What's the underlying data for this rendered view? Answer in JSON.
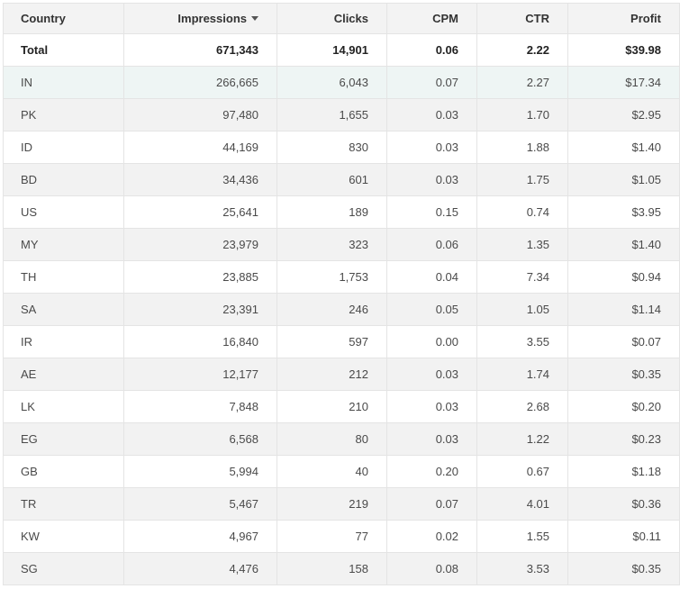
{
  "table": {
    "columns": [
      {
        "key": "country",
        "label": "Country"
      },
      {
        "key": "impressions",
        "label": "Impressions"
      },
      {
        "key": "clicks",
        "label": "Clicks"
      },
      {
        "key": "cpm",
        "label": "CPM"
      },
      {
        "key": "ctr",
        "label": "CTR"
      },
      {
        "key": "profit",
        "label": "Profit"
      }
    ],
    "sorted_by": "impressions",
    "sort_direction": "descending",
    "total": {
      "country": "Total",
      "impressions": "671,343",
      "clicks": "14,901",
      "cpm": "0.06",
      "ctr": "2.22",
      "profit": "$39.98"
    },
    "rows": [
      {
        "country": "IN",
        "impressions": "266,665",
        "clicks": "6,043",
        "cpm": "0.07",
        "ctr": "2.27",
        "profit": "$17.34"
      },
      {
        "country": "PK",
        "impressions": "97,480",
        "clicks": "1,655",
        "cpm": "0.03",
        "ctr": "1.70",
        "profit": "$2.95"
      },
      {
        "country": "ID",
        "impressions": "44,169",
        "clicks": "830",
        "cpm": "0.03",
        "ctr": "1.88",
        "profit": "$1.40"
      },
      {
        "country": "BD",
        "impressions": "34,436",
        "clicks": "601",
        "cpm": "0.03",
        "ctr": "1.75",
        "profit": "$1.05"
      },
      {
        "country": "US",
        "impressions": "25,641",
        "clicks": "189",
        "cpm": "0.15",
        "ctr": "0.74",
        "profit": "$3.95"
      },
      {
        "country": "MY",
        "impressions": "23,979",
        "clicks": "323",
        "cpm": "0.06",
        "ctr": "1.35",
        "profit": "$1.40"
      },
      {
        "country": "TH",
        "impressions": "23,885",
        "clicks": "1,753",
        "cpm": "0.04",
        "ctr": "7.34",
        "profit": "$0.94"
      },
      {
        "country": "SA",
        "impressions": "23,391",
        "clicks": "246",
        "cpm": "0.05",
        "ctr": "1.05",
        "profit": "$1.14"
      },
      {
        "country": "IR",
        "impressions": "16,840",
        "clicks": "597",
        "cpm": "0.00",
        "ctr": "3.55",
        "profit": "$0.07"
      },
      {
        "country": "AE",
        "impressions": "12,177",
        "clicks": "212",
        "cpm": "0.03",
        "ctr": "1.74",
        "profit": "$0.35"
      },
      {
        "country": "LK",
        "impressions": "7,848",
        "clicks": "210",
        "cpm": "0.03",
        "ctr": "2.68",
        "profit": "$0.20"
      },
      {
        "country": "EG",
        "impressions": "6,568",
        "clicks": "80",
        "cpm": "0.03",
        "ctr": "1.22",
        "profit": "$0.23"
      },
      {
        "country": "GB",
        "impressions": "5,994",
        "clicks": "40",
        "cpm": "0.20",
        "ctr": "0.67",
        "profit": "$1.18"
      },
      {
        "country": "TR",
        "impressions": "5,467",
        "clicks": "219",
        "cpm": "0.07",
        "ctr": "4.01",
        "profit": "$0.36"
      },
      {
        "country": "KW",
        "impressions": "4,967",
        "clicks": "77",
        "cpm": "0.02",
        "ctr": "1.55",
        "profit": "$0.11"
      },
      {
        "country": "SG",
        "impressions": "4,476",
        "clicks": "158",
        "cpm": "0.08",
        "ctr": "3.53",
        "profit": "$0.35"
      }
    ],
    "highlighted_row": 0
  },
  "icons": {
    "sort": "sort-descending-caret-icon"
  },
  "colors": {
    "header_bg": "#f3f3f3",
    "stripe_bg": "#f2f2f2",
    "highlight_bg": "#eef5f4",
    "border": "#e4e4e4"
  }
}
